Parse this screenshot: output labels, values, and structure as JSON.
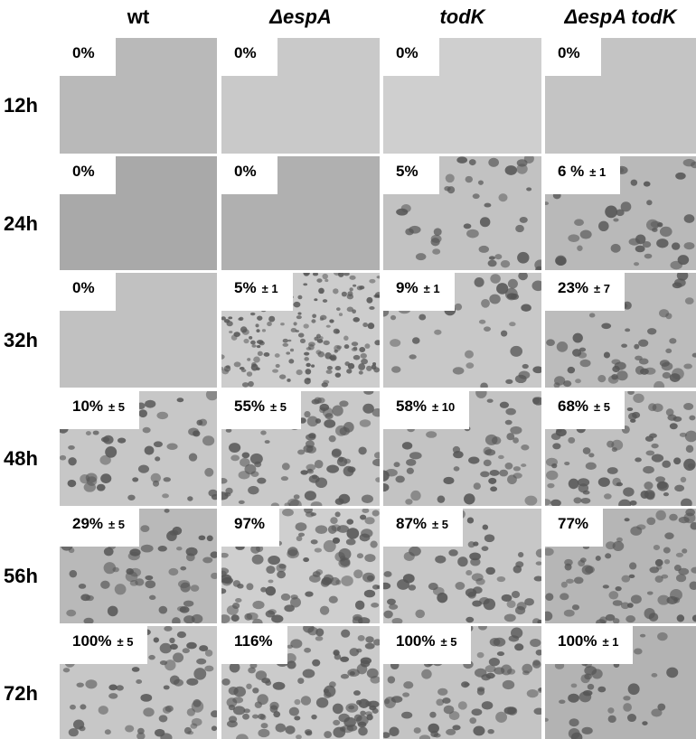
{
  "columns": [
    "wt",
    "ΔespA",
    "todK",
    "ΔespA todK"
  ],
  "rows": [
    {
      "label": "12h",
      "cells": [
        {
          "value": "0%"
        },
        {
          "value": "0%"
        },
        {
          "value": "0%"
        },
        {
          "value": "0%"
        }
      ]
    },
    {
      "label": "24h",
      "cells": [
        {
          "value": "0%"
        },
        {
          "value": "0%"
        },
        {
          "value": "5%"
        },
        {
          "value": "6 %",
          "error": "± 1"
        }
      ]
    },
    {
      "label": "32h",
      "cells": [
        {
          "value": "0%"
        },
        {
          "value": "5%",
          "error": "± 1"
        },
        {
          "value": "9%",
          "error": "± 1"
        },
        {
          "value": "23%",
          "error": "± 7"
        }
      ]
    },
    {
      "label": "48h",
      "cells": [
        {
          "value": "10%",
          "error": "± 5"
        },
        {
          "value": "55%",
          "error": "± 5"
        },
        {
          "value": "58%",
          "error": "± 10"
        },
        {
          "value": "68%",
          "error": "± 5"
        }
      ]
    },
    {
      "label": "56h",
      "cells": [
        {
          "value": "29%",
          "error": "± 5"
        },
        {
          "value": "97%"
        },
        {
          "value": "87%",
          "error": "± 5"
        },
        {
          "value": "77%"
        }
      ]
    },
    {
      "label": "72h",
      "cells": [
        {
          "value": "100%",
          "error": "± 5"
        },
        {
          "value": "116%"
        },
        {
          "value": "100%",
          "error": "± 5"
        },
        {
          "value": "100%",
          "error": "± 1"
        }
      ]
    }
  ]
}
